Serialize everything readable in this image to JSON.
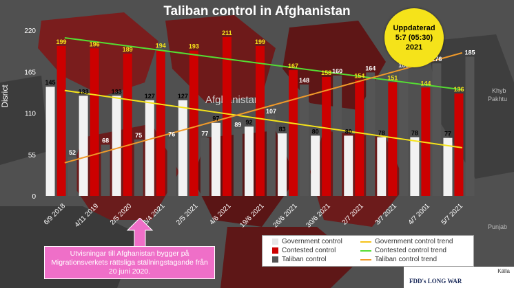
{
  "header": {
    "title": "Taliban control in Afghanistan"
  },
  "badge": {
    "line1": "Uppdaterad",
    "line2": "5:7 (05:30)",
    "line3": "2021"
  },
  "note": {
    "line1": "Utvisningar till Afghanistan bygger på",
    "line2": "Migrationsverkets rättsliga ställningstagande från",
    "line3": "20 juni 2020."
  },
  "source": {
    "label": "Källa",
    "brand": "FDD's LONG WAR"
  },
  "map_labels": {
    "country": "Afghanistan",
    "city1": "Khyb",
    "city2": "Pakhtu",
    "city3": "Punjab"
  },
  "chart_data": {
    "type": "bar",
    "ylabel": "Disrict",
    "ylim": [
      0,
      220
    ],
    "yticks": [
      0,
      55,
      110,
      165,
      220
    ],
    "categories": [
      "6/9 2018",
      "4/11 2019",
      "2/5 2020",
      "6/4 2021",
      "2/5 2021",
      "4/6 2021",
      "19/6 2021",
      "26/6 2021",
      "30/6 2021",
      "2/7 2021",
      "3/7 2021",
      "4/7 2001",
      "5/7 2021"
    ],
    "series": [
      {
        "name": "Government control",
        "color": "#f2f2f2",
        "label_color": "#000000",
        "values": [
          145,
          133,
          133,
          127,
          127,
          97,
          92,
          83,
          80,
          80,
          78,
          78,
          77
        ]
      },
      {
        "name": "Contested control",
        "color": "#cc0000",
        "label_color": "#f5e31a",
        "values": [
          199,
          196,
          189,
          194,
          193,
          211,
          199,
          167,
          158,
          154,
          151,
          144,
          136
        ]
      },
      {
        "name": "Taliban control",
        "color": "#555555",
        "label_color": "#ffffff",
        "values": [
          52,
          68,
          75,
          76,
          77,
          89,
          107,
          148,
          160,
          164,
          168,
          176,
          185
        ]
      }
    ],
    "trends": [
      {
        "name": "Government control trend",
        "color": "#f5e31a",
        "start": 140,
        "end": 64
      },
      {
        "name": "Contested control trend",
        "color": "#55dd33",
        "start": 210,
        "end": 141
      },
      {
        "name": "Taliban control trend",
        "color": "#f09a2a",
        "start": 44,
        "end": 190
      }
    ],
    "legend_position": "bottom-right",
    "grid": false
  }
}
